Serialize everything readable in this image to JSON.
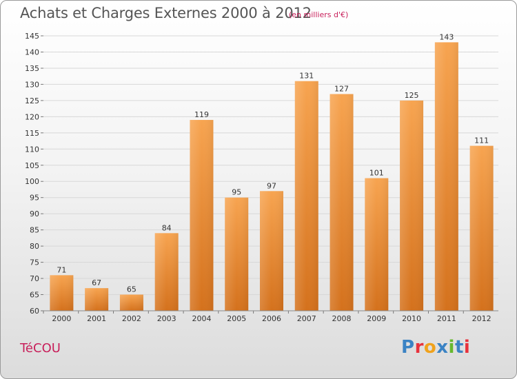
{
  "header": {
    "title": "Achats et Charges Externes 2000 à 2012",
    "unit": "(en milliers d'€)"
  },
  "footer": {
    "place": "TéCOU",
    "logo_text": "Proxiti",
    "logo_colors": [
      "#3b83c4",
      "#e8323c",
      "#f0a21c",
      "#3b83c4",
      "#66b82e",
      "#3b83c4",
      "#e8323c"
    ]
  },
  "colors": {
    "bar_top": "#f7a450",
    "bar_bottom": "#d4711c",
    "grid": "#d7d7d7",
    "title": "#555555",
    "accent": "#c81f5a"
  },
  "chart_data": {
    "type": "bar",
    "title": "Achats et Charges Externes 2000 à 2012",
    "xlabel": "",
    "ylabel": "",
    "categories": [
      "2000",
      "2001",
      "2002",
      "2003",
      "2004",
      "2005",
      "2006",
      "2007",
      "2008",
      "2009",
      "2010",
      "2011",
      "2012"
    ],
    "values": [
      71,
      67,
      65,
      84,
      119,
      95,
      97,
      131,
      127,
      101,
      125,
      143,
      111
    ],
    "ylim": [
      60,
      145
    ],
    "yticks": [
      60,
      65,
      70,
      75,
      80,
      85,
      90,
      95,
      100,
      105,
      110,
      115,
      120,
      125,
      130,
      135,
      140,
      145
    ],
    "grid": true,
    "legend": "none"
  }
}
